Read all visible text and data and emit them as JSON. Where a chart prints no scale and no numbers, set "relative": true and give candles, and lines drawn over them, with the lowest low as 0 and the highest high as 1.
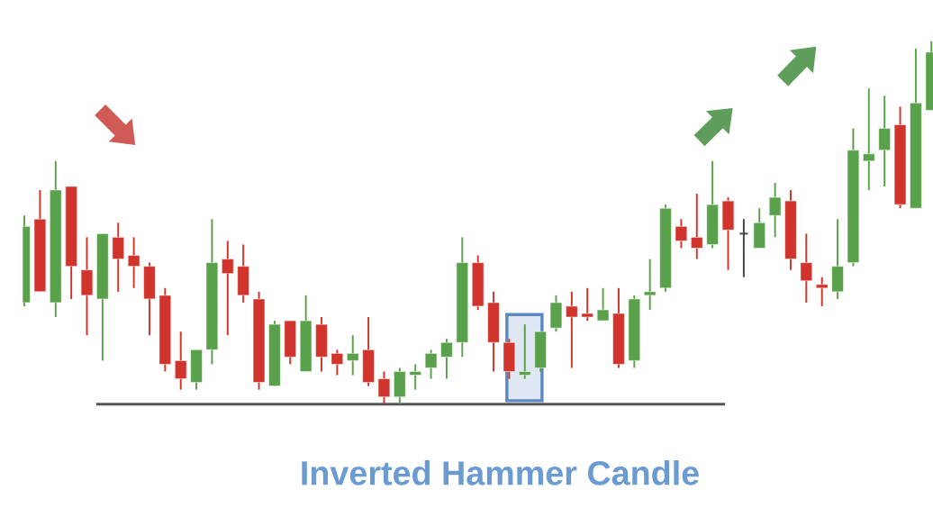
{
  "chart_data": {
    "type": "candlestick",
    "title": "Inverted Hammer Candle",
    "relative": true,
    "categories": [
      null,
      null,
      null,
      null,
      null,
      null,
      null,
      null,
      null,
      null,
      null,
      null,
      null,
      null,
      null,
      null,
      null,
      null,
      null,
      null,
      null,
      null,
      null,
      null,
      null,
      null,
      null,
      null,
      null,
      null,
      null,
      null,
      null,
      null,
      null,
      null,
      null,
      null,
      null,
      null,
      null,
      null,
      null,
      null,
      null,
      null,
      null,
      null,
      null,
      null,
      null,
      null,
      null,
      null,
      null,
      null,
      null,
      null,
      null
    ],
    "ohlc": [
      [
        0.28,
        0.52,
        0.27,
        0.49
      ],
      [
        0.51,
        0.59,
        0.31,
        0.31
      ],
      [
        0.28,
        0.67,
        0.24,
        0.59
      ],
      [
        0.6,
        0.6,
        0.29,
        0.38
      ],
      [
        0.37,
        0.46,
        0.19,
        0.3
      ],
      [
        0.29,
        0.47,
        0.12,
        0.47
      ],
      [
        0.46,
        0.5,
        0.31,
        0.4
      ],
      [
        0.41,
        0.46,
        0.32,
        0.38
      ],
      [
        0.38,
        0.39,
        0.19,
        0.29
      ],
      [
        0.3,
        0.32,
        0.09,
        0.11
      ],
      [
        0.12,
        0.2,
        0.04,
        0.07
      ],
      [
        0.06,
        0.15,
        0.04,
        0.15
      ],
      [
        0.15,
        0.51,
        0.11,
        0.39
      ],
      [
        0.4,
        0.45,
        0.19,
        0.36
      ],
      [
        0.38,
        0.44,
        0.28,
        0.3
      ],
      [
        0.29,
        0.31,
        0.04,
        0.06
      ],
      [
        0.05,
        0.23,
        0.05,
        0.22
      ],
      [
        0.23,
        0.23,
        0.11,
        0.13
      ],
      [
        0.09,
        0.3,
        0.09,
        0.23
      ],
      [
        0.22,
        0.24,
        0.09,
        0.13
      ],
      [
        0.14,
        0.15,
        0.08,
        0.11
      ],
      [
        0.12,
        0.19,
        0.08,
        0.14
      ],
      [
        0.15,
        0.24,
        0.05,
        0.06
      ],
      [
        0.07,
        0.09,
        0.0,
        0.02
      ],
      [
        0.02,
        0.1,
        0.0,
        0.09
      ],
      [
        0.08,
        0.11,
        0.04,
        0.09
      ],
      [
        0.1,
        0.15,
        0.07,
        0.14
      ],
      [
        0.13,
        0.18,
        0.07,
        0.17
      ],
      [
        0.17,
        0.46,
        0.13,
        0.39
      ],
      [
        0.39,
        0.41,
        0.26,
        0.27
      ],
      [
        0.28,
        0.31,
        0.09,
        0.17
      ],
      [
        0.17,
        0.18,
        0.07,
        0.09
      ],
      [
        0.08,
        0.22,
        0.07,
        0.09
      ],
      [
        0.1,
        0.2,
        0.09,
        0.2
      ],
      [
        0.21,
        0.3,
        0.2,
        0.28
      ],
      [
        0.27,
        0.31,
        0.1,
        0.24
      ],
      [
        0.25,
        0.32,
        0.23,
        0.24
      ],
      [
        0.23,
        0.32,
        0.23,
        0.26
      ],
      [
        0.25,
        0.32,
        0.1,
        0.11
      ],
      [
        0.12,
        0.3,
        0.1,
        0.29
      ],
      [
        0.3,
        0.4,
        0.26,
        0.31
      ],
      [
        0.32,
        0.55,
        0.31,
        0.54
      ],
      [
        0.49,
        0.51,
        0.43,
        0.45
      ],
      [
        0.46,
        0.58,
        0.4,
        0.43
      ],
      [
        0.44,
        0.67,
        0.43,
        0.55
      ],
      [
        0.56,
        0.57,
        0.37,
        0.48
      ],
      [
        0.47,
        0.51,
        0.35,
        0.47
      ],
      [
        0.43,
        0.54,
        0.43,
        0.5
      ],
      [
        0.52,
        0.61,
        0.46,
        0.57
      ],
      [
        0.56,
        0.59,
        0.37,
        0.4
      ],
      [
        0.39,
        0.47,
        0.28,
        0.34
      ],
      [
        0.33,
        0.35,
        0.27,
        0.32
      ],
      [
        0.31,
        0.51,
        0.29,
        0.38
      ],
      [
        0.39,
        0.76,
        0.38,
        0.7
      ],
      [
        0.67,
        0.87,
        0.59,
        0.69
      ],
      [
        0.7,
        0.85,
        0.6,
        0.76
      ],
      [
        0.77,
        0.82,
        0.54,
        0.55
      ],
      [
        0.54,
        0.98,
        0.54,
        0.83
      ],
      [
        0.81,
        1.0,
        0.81,
        0.97
      ]
    ],
    "colors": [
      "#5aa14c",
      "#d0342c",
      "#5aa14c",
      "#d0342c",
      "#d0342c",
      "#5aa14c",
      "#d0342c",
      "#d0342c",
      "#d0342c",
      "#d0342c",
      "#d0342c",
      "#5aa14c",
      "#5aa14c",
      "#d0342c",
      "#d0342c",
      "#d0342c",
      "#5aa14c",
      "#d0342c",
      "#5aa14c",
      "#d0342c",
      "#d0342c",
      "#5aa14c",
      "#d0342c",
      "#d0342c",
      "#5aa14c",
      "#5aa14c",
      "#5aa14c",
      "#5aa14c",
      "#5aa14c",
      "#d0342c",
      "#d0342c",
      "#d0342c",
      "#5aa14c",
      "#5aa14c",
      "#5aa14c",
      "#d0342c",
      "#d0342c",
      "#5aa14c",
      "#d0342c",
      "#5aa14c",
      "#5aa14c",
      "#5aa14c",
      "#d0342c",
      "#d0342c",
      "#5aa14c",
      "#d0342c",
      "#444444",
      "#5aa14c",
      "#5aa14c",
      "#d0342c",
      "#d0342c",
      "#d0342c",
      "#5aa14c",
      "#5aa14c",
      "#5aa14c",
      "#5aa14c",
      "#d0342c",
      "#5aa14c",
      "#5aa14c"
    ],
    "ref_lines": [
      {
        "axis": "y",
        "value": 0,
        "color": "#555555"
      }
    ]
  }
}
